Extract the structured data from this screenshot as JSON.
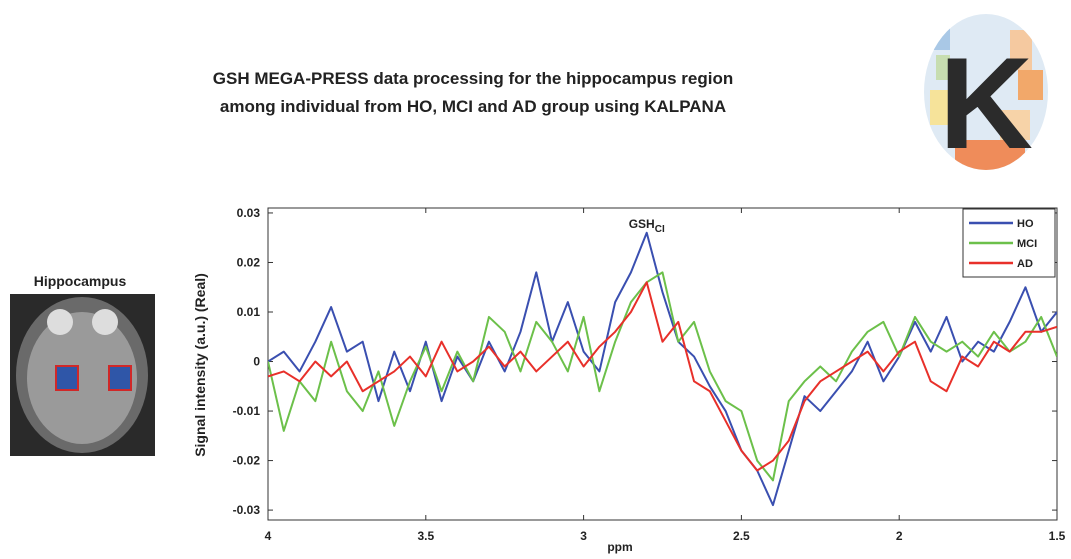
{
  "figure": {
    "title": [
      "GSH MEGA-PRESS data processing for the hippocampus region",
      "among individual from HO, MCI and AD group using KALPANA"
    ],
    "logo_letter": "K",
    "image_label": "Hippocampus"
  },
  "chart_data": {
    "type": "line",
    "ylabel": "Signal intensity (a.u.) (Real)",
    "xlabel": "ppm",
    "annotation": {
      "text": "GSH",
      "subscript": "CI",
      "x": 2.8,
      "y": 0.027
    },
    "xlim": [
      4,
      1.5
    ],
    "xticks": [
      4,
      3.5,
      3,
      2.5,
      2,
      1.5
    ],
    "ylim": [
      -0.032,
      0.031
    ],
    "yticks": [
      0.03,
      0.02,
      0.01,
      0,
      -0.01,
      -0.02,
      -0.03
    ],
    "legend": "upper right",
    "x": [
      4,
      3.95,
      3.9,
      3.85,
      3.8,
      3.75,
      3.7,
      3.65,
      3.6,
      3.55,
      3.5,
      3.45,
      3.4,
      3.35,
      3.3,
      3.25,
      3.2,
      3.15,
      3.1,
      3.05,
      3,
      2.95,
      2.9,
      2.85,
      2.8,
      2.75,
      2.7,
      2.65,
      2.6,
      2.55,
      2.5,
      2.45,
      2.4,
      2.35,
      2.3,
      2.25,
      2.2,
      2.15,
      2.1,
      2.05,
      2,
      1.95,
      1.9,
      1.85,
      1.8,
      1.75,
      1.7,
      1.65,
      1.6,
      1.55,
      1.5
    ],
    "series": [
      {
        "name": "HO",
        "color": "#3a4fb0",
        "values": [
          0,
          0.002,
          -0.002,
          0.004,
          0.011,
          0.002,
          0.004,
          -0.008,
          0.002,
          -0.006,
          0.004,
          -0.008,
          0.001,
          -0.004,
          0.004,
          -0.002,
          0.006,
          0.018,
          0.004,
          0.012,
          0.002,
          -0.002,
          0.012,
          0.018,
          0.026,
          0.014,
          0.004,
          0.001,
          -0.005,
          -0.01,
          -0.018,
          -0.022,
          -0.029,
          -0.018,
          -0.007,
          -0.01,
          -0.006,
          -0.002,
          0.004,
          -0.004,
          0.001,
          0.008,
          0.002,
          0.009,
          0,
          0.004,
          0.002,
          0.008,
          0.015,
          0.006,
          0.01
        ]
      },
      {
        "name": "MCI",
        "color": "#6cc04a",
        "values": [
          0,
          -0.014,
          -0.004,
          -0.008,
          0.004,
          -0.006,
          -0.01,
          -0.002,
          -0.013,
          -0.004,
          0.003,
          -0.006,
          0.002,
          -0.004,
          0.009,
          0.006,
          -0.002,
          0.008,
          0.004,
          -0.002,
          0.009,
          -0.006,
          0.004,
          0.012,
          0.016,
          0.018,
          0.004,
          0.008,
          -0.002,
          -0.008,
          -0.01,
          -0.02,
          -0.024,
          -0.008,
          -0.004,
          -0.001,
          -0.004,
          0.002,
          0.006,
          0.008,
          0.001,
          0.009,
          0.004,
          0.002,
          0.004,
          0.001,
          0.006,
          0.002,
          0.004,
          0.009,
          0.001
        ]
      },
      {
        "name": "AD",
        "color": "#e8302a",
        "values": [
          -0.003,
          -0.002,
          -0.004,
          0,
          -0.003,
          0,
          -0.006,
          -0.004,
          -0.002,
          0.001,
          -0.003,
          0.004,
          -0.002,
          0,
          0.003,
          -0.001,
          0.002,
          -0.002,
          0.001,
          0.004,
          -0.001,
          0.003,
          0.006,
          0.01,
          0.016,
          0.004,
          0.008,
          -0.004,
          -0.006,
          -0.012,
          -0.018,
          -0.022,
          -0.02,
          -0.016,
          -0.008,
          -0.004,
          -0.002,
          0,
          0.002,
          -0.002,
          0.002,
          0.004,
          -0.004,
          -0.006,
          0.001,
          -0.001,
          0.004,
          0.002,
          0.006,
          0.006,
          0.007
        ]
      }
    ]
  }
}
